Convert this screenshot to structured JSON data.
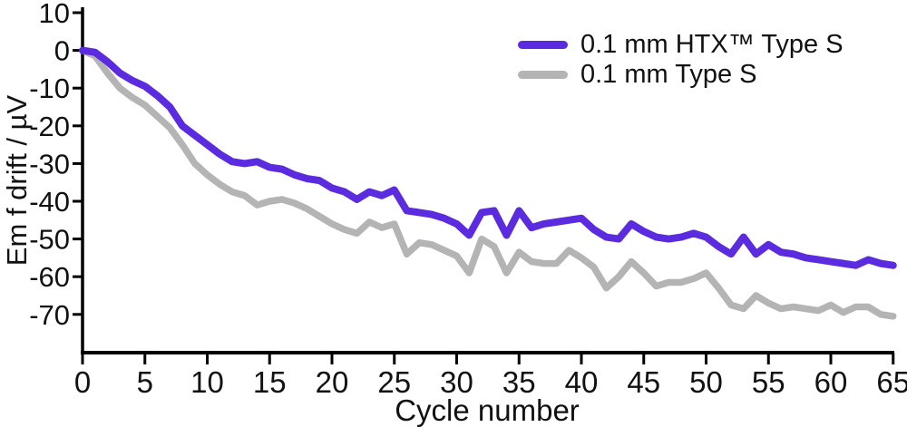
{
  "colors": {
    "background": "#ffffff",
    "axis": "#000000",
    "text": "#111111",
    "series_htx": "#5b2be0",
    "series_plain": "#b4b4b4"
  },
  "chart_data": {
    "type": "line",
    "title": "",
    "xlabel": "Cycle number",
    "ylabel": "Em f drift / µV",
    "grid": false,
    "legend_position": "top-right",
    "xlim": [
      0,
      65
    ],
    "ylim": [
      -80,
      10
    ],
    "x_ticks": [
      0,
      5,
      10,
      15,
      20,
      25,
      30,
      35,
      40,
      45,
      50,
      55,
      60,
      65
    ],
    "y_ticks": [
      10,
      0,
      -10,
      -20,
      -30,
      -40,
      -50,
      -60,
      -70
    ],
    "x": [
      0,
      1,
      2,
      3,
      4,
      5,
      6,
      7,
      8,
      9,
      10,
      11,
      12,
      13,
      14,
      15,
      16,
      17,
      18,
      19,
      20,
      21,
      22,
      23,
      24,
      25,
      26,
      27,
      28,
      29,
      30,
      31,
      32,
      33,
      34,
      35,
      36,
      37,
      38,
      39,
      40,
      41,
      42,
      43,
      44,
      45,
      46,
      47,
      48,
      49,
      50,
      51,
      52,
      53,
      54,
      55,
      56,
      57,
      58,
      59,
      60,
      61,
      62,
      63,
      64,
      65
    ],
    "series": [
      {
        "name": "0.1 mm HTX™ Type S",
        "color": "#5b2be0",
        "stroke_width": 8,
        "values": [
          0,
          -0.5,
          -3,
          -6,
          -8,
          -9.5,
          -12,
          -15,
          -20,
          -22.5,
          -25,
          -27.5,
          -29.5,
          -30,
          -29.5,
          -31,
          -31.5,
          -33,
          -34,
          -34.5,
          -36.5,
          -37.5,
          -39.5,
          -37.5,
          -38.5,
          -37,
          -42.5,
          -43,
          -43.5,
          -44.5,
          -46,
          -49,
          -43,
          -42.5,
          -49,
          -42.5,
          -47,
          -46,
          -45.5,
          -45,
          -44.5,
          -47.5,
          -49.5,
          -50,
          -46,
          -48,
          -49.5,
          -50,
          -49.5,
          -48.5,
          -49.5,
          -52,
          -54,
          -49.5,
          -54,
          -51.5,
          -53.5,
          -54,
          -55,
          -55.5,
          -56,
          -56.5,
          -57,
          -55.5,
          -56.5,
          -57
        ]
      },
      {
        "name": "0.1 mm Type S",
        "color": "#b4b4b4",
        "stroke_width": 7.5,
        "values": [
          0,
          -1.5,
          -6,
          -10,
          -12.5,
          -14.5,
          -17.5,
          -20.5,
          -25,
          -30,
          -33,
          -35.5,
          -37.5,
          -38.5,
          -41,
          -40,
          -39.5,
          -40.5,
          -42,
          -44,
          -46,
          -47.5,
          -48.5,
          -45.5,
          -47,
          -46,
          -54,
          -51,
          -51.5,
          -53,
          -54.5,
          -59,
          -50,
          -52,
          -59,
          -53.5,
          -56,
          -56.5,
          -56.5,
          -53,
          -55,
          -57.5,
          -63,
          -60,
          -56,
          -59,
          -62.5,
          -61.5,
          -61.5,
          -60.5,
          -59,
          -63,
          -67.5,
          -68.5,
          -65,
          -67,
          -68.5,
          -68,
          -68.5,
          -69,
          -67.5,
          -69.5,
          -68,
          -68,
          -70,
          -70.5
        ]
      }
    ]
  }
}
